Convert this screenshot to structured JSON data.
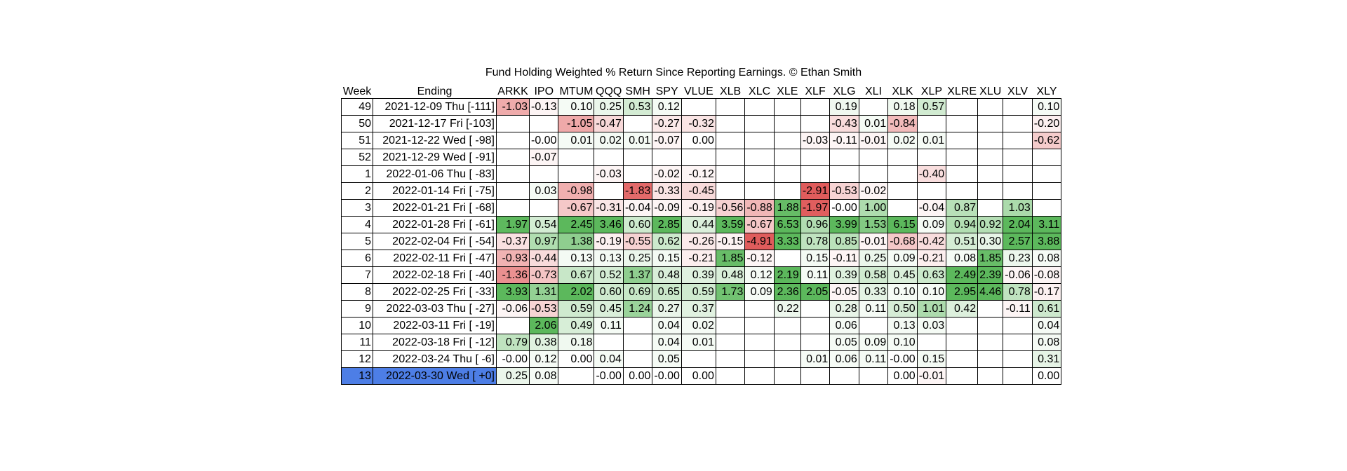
{
  "chart_data": {
    "type": "table",
    "title": "Fund Holding Weighted % Return Since Reporting Earnings.  © Ethan Smith",
    "columns": [
      "Week",
      "Ending",
      "ARKK",
      "IPO",
      "MTUM",
      "QQQ",
      "SMH",
      "SPY",
      "VLUE",
      "XLB",
      "XLC",
      "XLE",
      "XLF",
      "XLG",
      "XLI",
      "XLK",
      "XLP",
      "XLRE",
      "XLU",
      "XLV",
      "XLY"
    ],
    "rows": [
      {
        "week": "49",
        "ending": "2021-12-09 Thu [-111]",
        "values": [
          "-1.03",
          "-0.13",
          "0.10",
          "0.25",
          "0.53",
          "0.12",
          "",
          "",
          "",
          "",
          "",
          "0.19",
          "",
          "0.18",
          "0.57",
          "",
          "",
          "",
          "0.10"
        ]
      },
      {
        "week": "50",
        "ending": "2021-12-17 Fri [-103]",
        "values": [
          "",
          "",
          "-1.05",
          "-0.47",
          "",
          "-0.27",
          "-0.32",
          "",
          "",
          "",
          "",
          "-0.43",
          "0.01",
          "-0.84",
          "",
          "",
          "",
          "",
          "-0.20"
        ]
      },
      {
        "week": "51",
        "ending": "2021-12-22 Wed [ -98]",
        "values": [
          "",
          "-0.00",
          "0.01",
          "0.02",
          "0.01",
          "-0.07",
          "0.00",
          "",
          "",
          "",
          "-0.03",
          "-0.11",
          "-0.01",
          "0.02",
          "0.01",
          "",
          "",
          "",
          "-0.62"
        ]
      },
      {
        "week": "52",
        "ending": "2021-12-29 Wed [ -91]",
        "values": [
          "",
          "-0.07",
          "",
          "",
          "",
          "",
          "",
          "",
          "",
          "",
          "",
          "",
          "",
          "",
          "",
          "",
          "",
          "",
          ""
        ]
      },
      {
        "week": "1",
        "ending": "2022-01-06 Thu [ -83]",
        "values": [
          "",
          "",
          "",
          "-0.03",
          "",
          "-0.02",
          "-0.12",
          "",
          "",
          "",
          "",
          "",
          "",
          "",
          "-0.40",
          "",
          "",
          "",
          ""
        ]
      },
      {
        "week": "2",
        "ending": "2022-01-14 Fri [ -75]",
        "values": [
          "",
          "0.03",
          "-0.98",
          "",
          "-1.83",
          "-0.33",
          "-0.45",
          "",
          "",
          "",
          "-2.91",
          "-0.53",
          "-0.02",
          "",
          "",
          "",
          "",
          "",
          ""
        ]
      },
      {
        "week": "3",
        "ending": "2022-01-21 Fri [ -68]",
        "values": [
          "",
          "",
          "-0.67",
          "-0.31",
          "-0.04",
          "-0.09",
          "-0.19",
          "-0.56",
          "-0.88",
          "1.88",
          "-1.97",
          "-0.00",
          "1.00",
          "",
          "-0.04",
          "0.87",
          "",
          "1.03",
          ""
        ]
      },
      {
        "week": "4",
        "ending": "2022-01-28 Fri [ -61]",
        "values": [
          "1.97",
          "0.54",
          "2.45",
          "3.46",
          "0.60",
          "2.85",
          "0.44",
          "3.59",
          "-0.67",
          "6.53",
          "0.96",
          "3.99",
          "1.53",
          "6.15",
          "0.09",
          "0.94",
          "0.92",
          "2.04",
          "3.11"
        ]
      },
      {
        "week": "5",
        "ending": "2022-02-04 Fri [ -54]",
        "values": [
          "-0.37",
          "0.97",
          "1.38",
          "-0.19",
          "-0.55",
          "0.62",
          "-0.26",
          "-0.15",
          "-4.91",
          "3.33",
          "0.78",
          "0.85",
          "-0.01",
          "-0.68",
          "-0.42",
          "0.51",
          "0.30",
          "2.57",
          "3.88"
        ]
      },
      {
        "week": "6",
        "ending": "2022-02-11 Fri [ -47]",
        "values": [
          "-0.93",
          "-0.44",
          "0.13",
          "0.13",
          "0.25",
          "0.15",
          "-0.21",
          "1.85",
          "-0.12",
          "",
          "0.15",
          "-0.11",
          "0.25",
          "0.09",
          "-0.21",
          "0.08",
          "1.85",
          "0.23",
          "0.08"
        ]
      },
      {
        "week": "7",
        "ending": "2022-02-18 Fri [ -40]",
        "values": [
          "-1.36",
          "-0.73",
          "0.67",
          "0.52",
          "1.37",
          "0.48",
          "0.39",
          "0.48",
          "0.12",
          "2.19",
          "0.11",
          "0.39",
          "0.58",
          "0.45",
          "0.63",
          "2.49",
          "2.39",
          "-0.06",
          "-0.08"
        ]
      },
      {
        "week": "8",
        "ending": "2022-02-25 Fri [ -33]",
        "values": [
          "3.93",
          "1.31",
          "2.02",
          "0.60",
          "0.69",
          "0.65",
          "0.59",
          "1.73",
          "0.09",
          "2.36",
          "2.05",
          "-0.05",
          "0.33",
          "0.10",
          "0.10",
          "2.95",
          "4.46",
          "0.78",
          "-0.17"
        ]
      },
      {
        "week": "9",
        "ending": "2022-03-03 Thu [ -27]",
        "values": [
          "-0.06",
          "-0.53",
          "0.59",
          "0.45",
          "1.24",
          "0.27",
          "0.37",
          "",
          "",
          "0.22",
          "",
          "0.28",
          "0.11",
          "0.50",
          "1.01",
          "0.42",
          "",
          "-0.11",
          "0.61"
        ]
      },
      {
        "week": "10",
        "ending": "2022-03-11 Fri [ -19]",
        "values": [
          "",
          "2.06",
          "0.49",
          "0.11",
          "",
          "0.04",
          "0.02",
          "",
          "",
          "",
          "",
          "0.06",
          "",
          "0.13",
          "0.03",
          "",
          "",
          "",
          "0.04"
        ]
      },
      {
        "week": "11",
        "ending": "2022-03-18 Fri [ -12]",
        "values": [
          "0.79",
          "0.38",
          "0.18",
          "",
          "",
          "0.04",
          "0.01",
          "",
          "",
          "",
          "",
          "0.05",
          "0.09",
          "0.10",
          "",
          "",
          "",
          "",
          "0.08"
        ]
      },
      {
        "week": "12",
        "ending": "2022-03-24 Thu [  -6]",
        "values": [
          "-0.00",
          "0.12",
          "0.00",
          "0.04",
          "",
          "0.05",
          "",
          "",
          "",
          "",
          "0.01",
          "0.06",
          "0.11",
          "-0.00",
          "0.15",
          "",
          "",
          "",
          "0.31"
        ]
      },
      {
        "week": "13",
        "ending": "2022-03-30 Wed [  +0]",
        "highlight": true,
        "values": [
          "0.25",
          "0.08",
          "",
          "-0.00",
          "0.00",
          "-0.00",
          "0.00",
          "",
          "",
          "",
          "",
          "",
          "",
          "0.00",
          "-0.01",
          "",
          "",
          "",
          "0.00"
        ]
      }
    ],
    "colors": {
      "positive_strong": "#5cb85c",
      "negative_strong": "#e05c5c",
      "neutral": "#ffffff",
      "highlight": "#4d7ee6"
    }
  }
}
